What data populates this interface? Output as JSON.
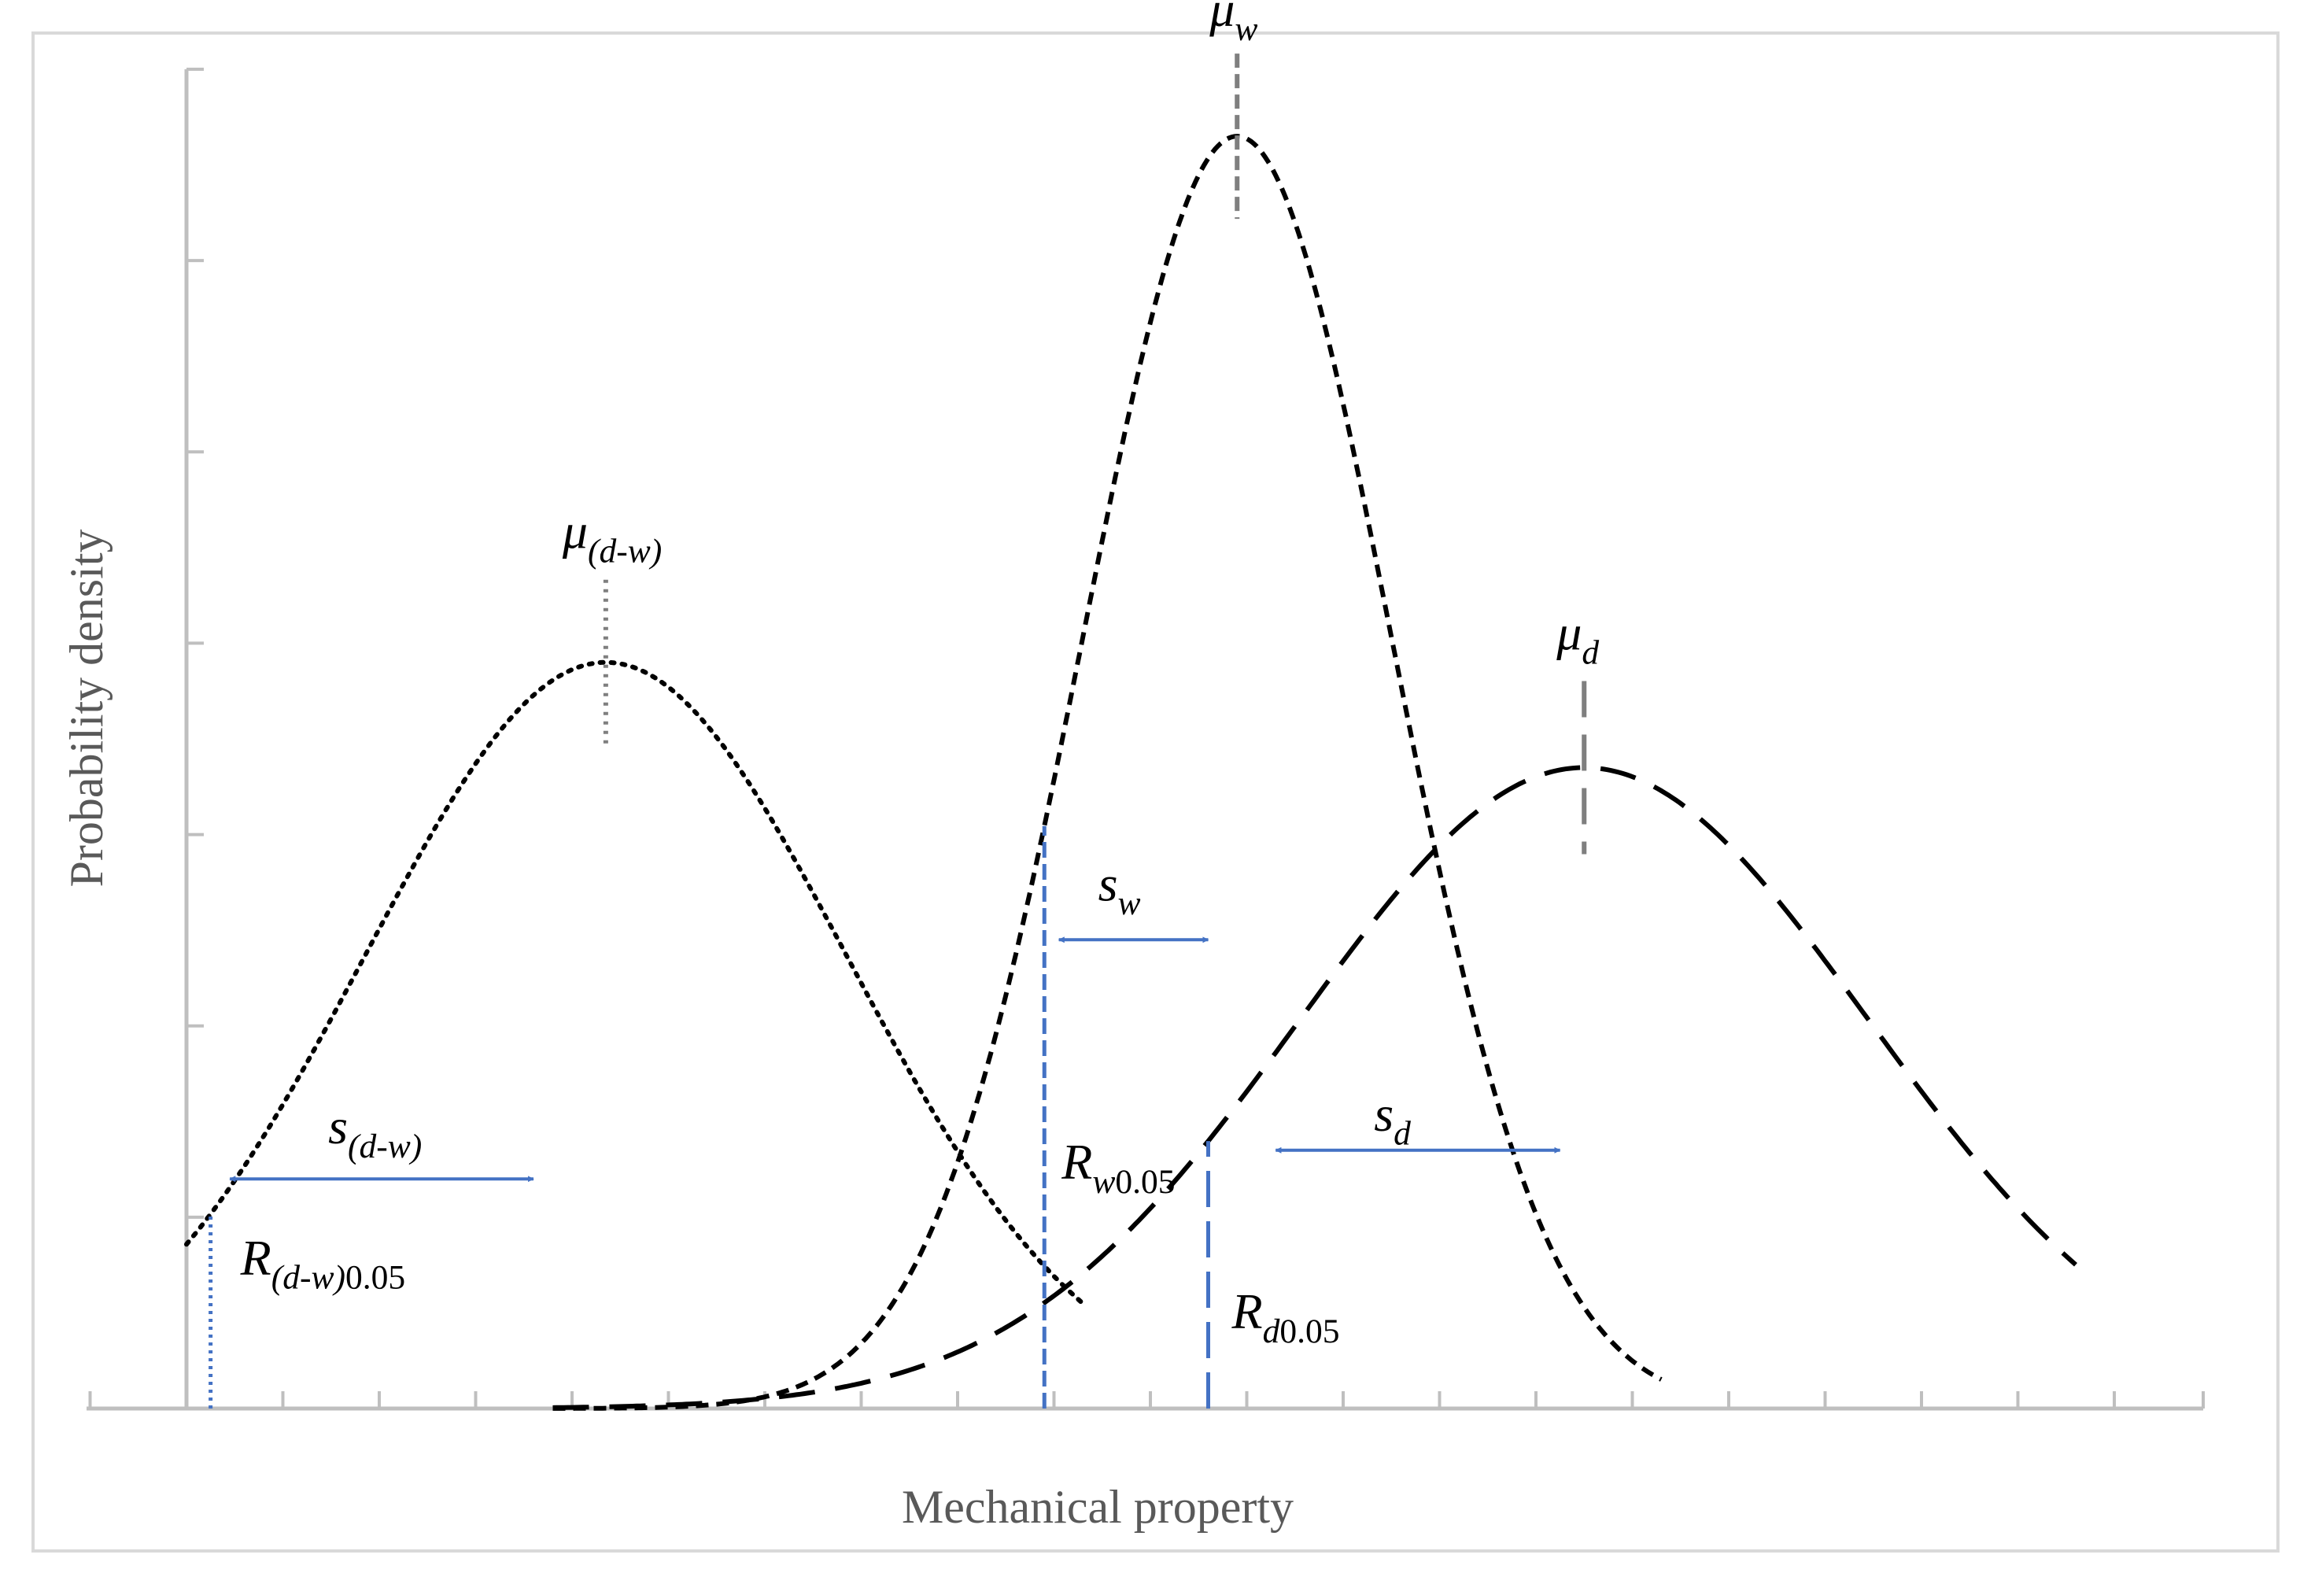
{
  "chart_data": {
    "type": "line",
    "title": "",
    "xlabel": "Mechanical property",
    "ylabel": "Probability density",
    "xlim": [
      0,
      20
    ],
    "ylim": [
      0,
      7
    ],
    "grid": false,
    "legend": "none",
    "series": [
      {
        "key": "dw",
        "style": "dotted",
        "mean": 4.35,
        "sd": 2.5,
        "peak": 3.9,
        "x_from": 0.0,
        "x_to": 9.3
      },
      {
        "key": "w",
        "style": "short-dash",
        "mean": 10.9,
        "sd": 1.6,
        "peak": 6.65,
        "x_from": 3.8,
        "x_to": 15.3
      },
      {
        "key": "d",
        "style": "long-dash",
        "mean": 14.5,
        "sd": 2.95,
        "peak": 3.35,
        "x_from": 3.8,
        "x_to": 19.6
      }
    ],
    "annotations": {
      "mu_dw": {
        "symbol": "μ",
        "sub": "(d-w)",
        "x": 4.35
      },
      "mu_w": {
        "symbol": "μ",
        "sub": "w",
        "x": 10.9
      },
      "mu_d": {
        "symbol": "μ",
        "sub": "d",
        "x": 14.5
      },
      "s_dw": {
        "symbol": "s",
        "sub": "(d-w)",
        "x_from": 0.45,
        "x_to": 3.6,
        "y": 1.2
      },
      "s_w": {
        "symbol": "s",
        "sub": "w",
        "x_from": 9.05,
        "x_to": 10.6,
        "y": 2.45
      },
      "s_d": {
        "symbol": "s",
        "sub": "d",
        "x_from": 11.3,
        "x_to": 14.25,
        "y": 1.35
      },
      "R_dw": {
        "symbol": "R",
        "sub": "(d-w)",
        "sub2": "0.05",
        "x": 0.25
      },
      "R_w": {
        "symbol": "R",
        "sub": "w",
        "sub2": "0.05",
        "x": 8.9
      },
      "R_d": {
        "symbol": "R",
        "sub": "d",
        "sub2": "0.05",
        "x": 10.6
      }
    },
    "colors": {
      "curve": "#000000",
      "marker_blue": "#4472c4",
      "mean_marker": "#7f7f7f",
      "axis": "#bfbfbf",
      "axis_title": "#595959"
    }
  }
}
